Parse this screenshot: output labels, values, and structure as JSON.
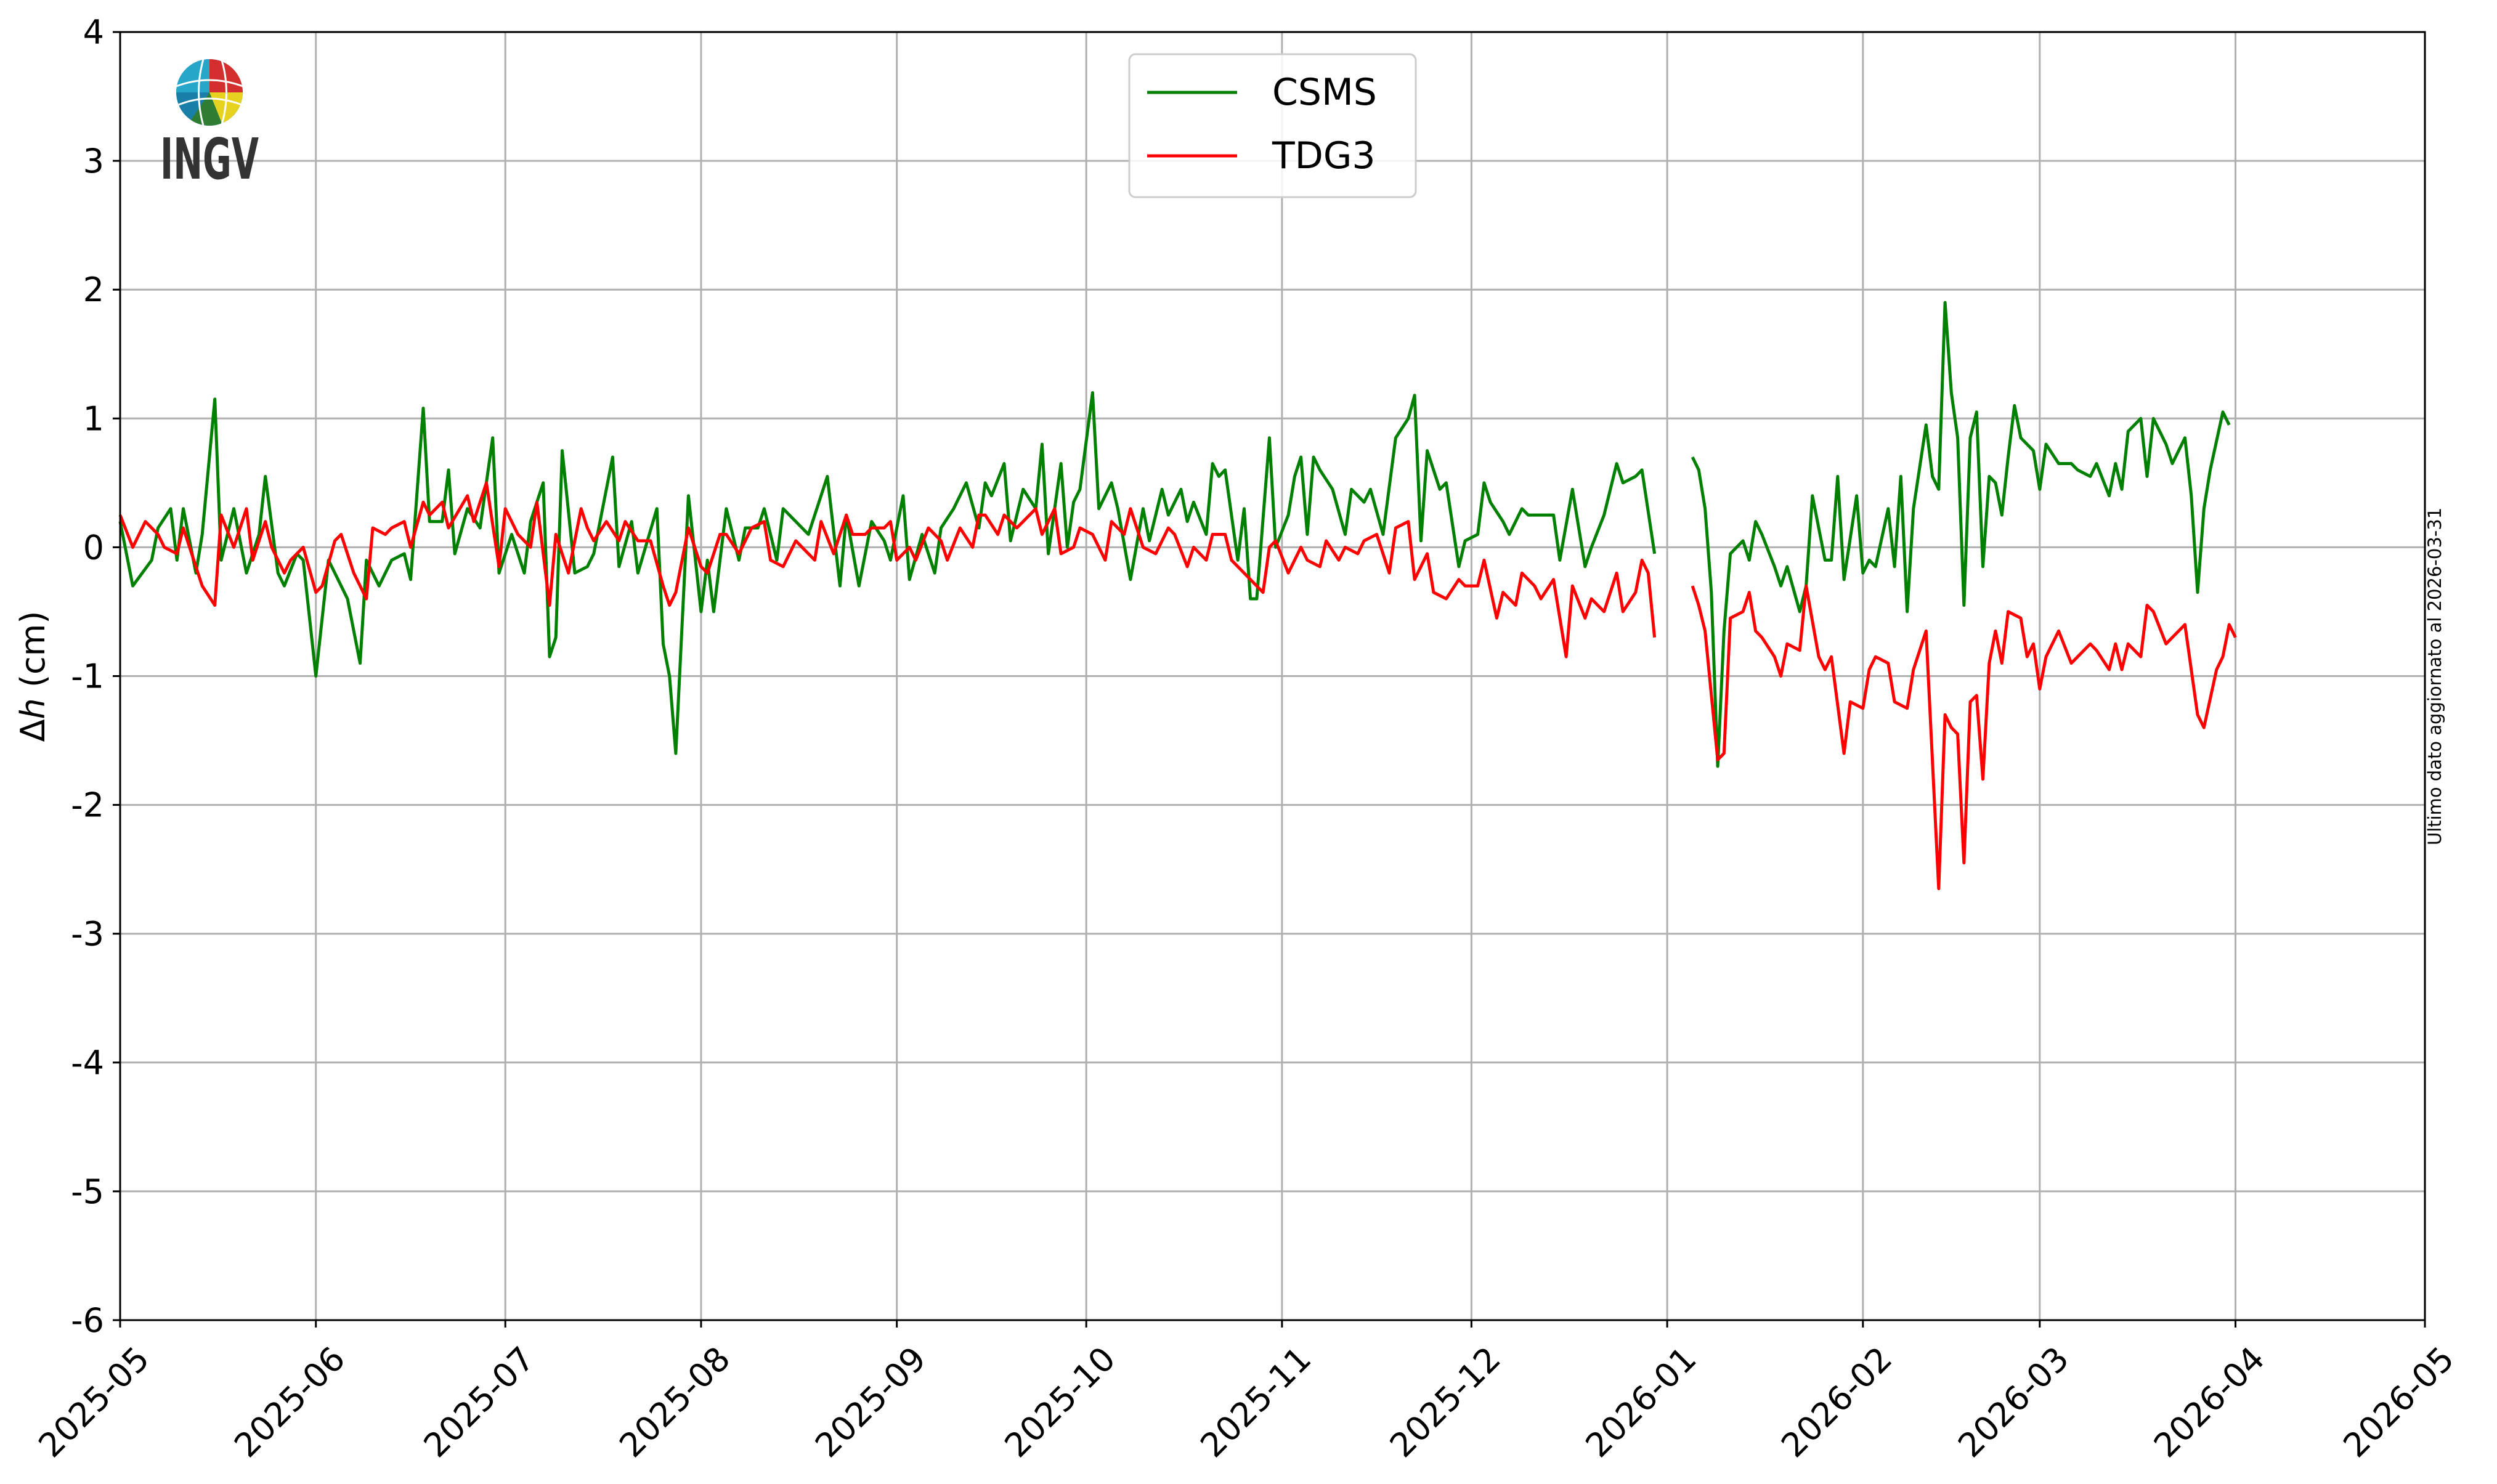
{
  "chart_data": {
    "type": "line",
    "title": "",
    "xlabel": "",
    "ylabel_symbol": "Δ",
    "ylabel_var": "h",
    "ylabel_unit": " (cm)",
    "x_unit": "days since 2025-05-01",
    "xlim": [
      0,
      365
    ],
    "ylim": [
      -6,
      4
    ],
    "grid": true,
    "legend_position": "top-center",
    "xticks": [
      {
        "day": 0,
        "label": "2025-05"
      },
      {
        "day": 31,
        "label": "2025-06"
      },
      {
        "day": 61,
        "label": "2025-07"
      },
      {
        "day": 92,
        "label": "2025-08"
      },
      {
        "day": 123,
        "label": "2025-09"
      },
      {
        "day": 153,
        "label": "2025-10"
      },
      {
        "day": 184,
        "label": "2025-11"
      },
      {
        "day": 214,
        "label": "2025-12"
      },
      {
        "day": 245,
        "label": "2026-01"
      },
      {
        "day": 276,
        "label": "2026-02"
      },
      {
        "day": 304,
        "label": "2026-03"
      },
      {
        "day": 335,
        "label": "2026-04"
      },
      {
        "day": 365,
        "label": "2026-05"
      }
    ],
    "yticks": [
      {
        "value": 4,
        "label": "4"
      },
      {
        "value": 3,
        "label": "3"
      },
      {
        "value": 2,
        "label": "2"
      },
      {
        "value": 1,
        "label": "1"
      },
      {
        "value": 0,
        "label": "0"
      },
      {
        "value": -1,
        "label": "-1"
      },
      {
        "value": -2,
        "label": "-2"
      },
      {
        "value": -3,
        "label": "-3"
      },
      {
        "value": -4,
        "label": "-4"
      },
      {
        "value": -5,
        "label": "-5"
      },
      {
        "value": -6,
        "label": "-6"
      }
    ],
    "series": [
      {
        "name": "CSMS",
        "color": "#008000",
        "x": [
          0,
          2,
          5,
          6,
          8,
          9,
          10,
          12,
          13,
          15,
          16,
          18,
          20,
          22,
          23,
          25,
          26,
          28,
          29,
          31,
          33,
          34,
          36,
          38,
          39,
          41,
          43,
          45,
          46,
          48,
          49,
          51,
          52,
          53,
          55,
          57,
          59,
          60,
          62,
          64,
          65,
          67,
          68,
          69,
          70,
          72,
          74,
          75,
          78,
          79,
          81,
          82,
          85,
          86,
          87,
          88,
          90,
          92,
          93,
          94,
          96,
          98,
          99,
          101,
          102,
          104,
          105,
          107,
          109,
          112,
          114,
          115,
          117,
          119,
          121,
          122,
          124,
          125,
          127,
          129,
          130,
          132,
          134,
          136,
          137,
          138,
          140,
          141,
          143,
          145,
          146,
          147,
          149,
          150,
          151,
          152,
          154,
          155,
          157,
          158,
          160,
          162,
          163,
          165,
          166,
          168,
          169,
          170,
          172,
          173,
          174,
          175,
          177,
          178,
          179,
          180,
          182,
          183,
          185,
          186,
          187,
          188,
          189,
          190,
          192,
          194,
          195,
          197,
          198,
          200,
          202,
          204,
          205,
          206,
          207,
          209,
          210,
          212,
          213,
          215,
          216,
          217,
          219,
          220,
          222,
          223,
          225,
          227,
          228,
          230,
          232,
          233,
          235,
          237,
          238,
          240,
          241,
          243,
          246,
          249,
          250,
          251,
          252,
          253,
          254,
          255,
          257,
          258,
          259,
          260,
          262,
          263,
          264,
          266,
          267,
          268,
          270,
          271,
          272,
          273,
          275,
          276,
          277,
          278,
          280,
          281,
          282,
          283,
          284,
          286,
          287,
          288,
          289,
          290,
          291,
          292,
          293,
          294,
          295,
          296,
          297,
          298,
          299,
          300,
          301,
          303,
          304,
          305,
          307,
          309,
          310,
          312,
          313,
          315,
          316,
          317,
          318,
          320,
          321,
          322,
          324,
          325,
          327,
          328,
          329,
          330,
          331,
          333,
          334
        ],
        "y": [
          0.2,
          -0.3,
          -0.1,
          0.15,
          0.3,
          -0.1,
          0.3,
          -0.2,
          0.1,
          1.15,
          -0.1,
          0.3,
          -0.2,
          0.1,
          0.55,
          -0.2,
          -0.3,
          -0.05,
          -0.1,
          -1.0,
          -0.1,
          -0.2,
          -0.4,
          -0.9,
          -0.1,
          -0.3,
          -0.1,
          -0.05,
          -0.25,
          1.08,
          0.2,
          0.2,
          0.6,
          -0.05,
          0.3,
          0.15,
          0.85,
          -0.2,
          0.1,
          -0.2,
          0.2,
          0.5,
          -0.85,
          -0.7,
          0.75,
          -0.2,
          -0.15,
          -0.05,
          0.7,
          -0.15,
          0.2,
          -0.2,
          0.3,
          -0.75,
          -1.0,
          -1.6,
          0.4,
          -0.5,
          -0.1,
          -0.5,
          0.3,
          -0.1,
          0.15,
          0.15,
          0.3,
          -0.1,
          0.3,
          0.2,
          0.1,
          0.55,
          -0.3,
          0.25,
          -0.3,
          0.2,
          0.05,
          -0.1,
          0.4,
          -0.25,
          0.1,
          -0.2,
          0.15,
          0.3,
          0.5,
          0.15,
          0.5,
          0.4,
          0.65,
          0.05,
          0.45,
          0.3,
          0.8,
          -0.05,
          0.65,
          0.0,
          0.35,
          0.45,
          1.2,
          0.3,
          0.5,
          0.3,
          -0.25,
          0.3,
          0.05,
          0.45,
          0.25,
          0.45,
          0.2,
          0.35,
          0.1,
          0.65,
          0.55,
          0.6,
          -0.1,
          0.3,
          -0.4,
          -0.4,
          0.85,
          0.0,
          0.25,
          0.55,
          0.7,
          0.1,
          0.7,
          0.6,
          0.45,
          0.1,
          0.45,
          0.35,
          0.45,
          0.1,
          0.85,
          1.0,
          1.18,
          0.05,
          0.75,
          0.45,
          0.5,
          -0.15,
          0.05,
          0.1,
          0.5,
          0.35,
          0.2,
          0.1,
          0.3,
          0.25,
          0.25,
          0.25,
          -0.1,
          0.45,
          -0.15,
          0.0,
          0.25,
          0.65,
          0.5,
          0.55,
          0.6,
          -0.05,
          null,
          0.7,
          0.6,
          0.3,
          -0.35,
          -1.7,
          -0.65,
          -0.05,
          0.05,
          -0.1,
          0.2,
          0.1,
          -0.15,
          -0.3,
          -0.15,
          -0.5,
          -0.3,
          0.4,
          -0.1,
          -0.1,
          0.55,
          -0.25,
          0.4,
          -0.2,
          -0.1,
          -0.15,
          0.3,
          -0.15,
          0.55,
          -0.5,
          0.3,
          0.95,
          0.55,
          0.45,
          1.9,
          1.2,
          0.85,
          -0.45,
          0.85,
          1.05,
          -0.15,
          0.55,
          0.5,
          0.25,
          0.7,
          1.1,
          0.85,
          0.75,
          0.45,
          0.8,
          0.65,
          0.65,
          0.6,
          0.55,
          0.65,
          0.4,
          0.65,
          0.45,
          0.9,
          1.0,
          0.55,
          1.0,
          0.8,
          0.65,
          0.85,
          0.4,
          -0.35,
          0.3,
          0.6,
          1.05,
          0.95
        ]
      },
      {
        "name": "TDG3",
        "color": "#ff0000",
        "x": [
          0,
          2,
          4,
          6,
          7,
          9,
          10,
          11,
          13,
          15,
          16,
          18,
          20,
          21,
          23,
          24,
          26,
          27,
          29,
          31,
          32,
          34,
          35,
          37,
          39,
          40,
          42,
          43,
          45,
          46,
          48,
          49,
          51,
          52,
          55,
          56,
          58,
          60,
          61,
          63,
          65,
          66,
          68,
          69,
          71,
          73,
          74,
          75,
          77,
          79,
          80,
          82,
          84,
          86,
          87,
          88,
          90,
          92,
          93,
          95,
          96,
          98,
          100,
          102,
          103,
          105,
          107,
          108,
          110,
          111,
          113,
          115,
          116,
          118,
          119,
          121,
          122,
          123,
          125,
          126,
          128,
          130,
          131,
          133,
          135,
          136,
          137,
          139,
          140,
          142,
          143,
          145,
          146,
          148,
          149,
          151,
          152,
          154,
          156,
          157,
          159,
          160,
          162,
          164,
          166,
          167,
          169,
          170,
          172,
          173,
          175,
          176,
          178,
          179,
          181,
          182,
          183,
          185,
          187,
          188,
          190,
          191,
          193,
          194,
          196,
          197,
          199,
          201,
          202,
          204,
          205,
          207,
          208,
          210,
          212,
          213,
          215,
          216,
          218,
          219,
          221,
          222,
          224,
          225,
          227,
          229,
          230,
          232,
          233,
          235,
          237,
          238,
          240,
          241,
          242,
          243,
          246,
          249,
          250,
          251,
          253,
          254,
          255,
          257,
          258,
          259,
          260,
          262,
          263,
          264,
          266,
          267,
          269,
          270,
          271,
          273,
          274,
          276,
          277,
          278,
          280,
          281,
          283,
          284,
          286,
          288,
          289,
          290,
          291,
          292,
          293,
          294,
          295,
          296,
          297,
          298,
          299,
          301,
          302,
          303,
          304,
          305,
          307,
          309,
          310,
          312,
          313,
          315,
          316,
          317,
          318,
          320,
          321,
          322,
          324,
          325,
          327,
          329,
          330,
          332,
          333,
          334,
          335
        ],
        "y": [
          0.25,
          0.0,
          0.2,
          0.1,
          0.0,
          -0.05,
          0.15,
          0.0,
          -0.3,
          -0.45,
          0.25,
          0.0,
          0.3,
          -0.1,
          0.2,
          0.0,
          -0.2,
          -0.1,
          0.0,
          -0.35,
          -0.3,
          0.05,
          0.1,
          -0.2,
          -0.4,
          0.15,
          0.1,
          0.15,
          0.2,
          0.0,
          0.35,
          0.25,
          0.35,
          0.15,
          0.4,
          0.2,
          0.5,
          -0.15,
          0.3,
          0.1,
          0.0,
          0.35,
          -0.45,
          0.1,
          -0.2,
          0.3,
          0.15,
          0.05,
          0.2,
          0.05,
          0.2,
          0.05,
          0.05,
          -0.3,
          -0.45,
          -0.35,
          0.15,
          -0.15,
          -0.2,
          0.1,
          0.1,
          -0.05,
          0.15,
          0.2,
          -0.1,
          -0.15,
          0.05,
          0.0,
          -0.1,
          0.2,
          -0.05,
          0.25,
          0.1,
          0.1,
          0.15,
          0.15,
          0.2,
          -0.1,
          0.0,
          -0.1,
          0.15,
          0.05,
          -0.1,
          0.15,
          0.0,
          0.25,
          0.25,
          0.1,
          0.25,
          0.15,
          0.2,
          0.3,
          0.1,
          0.3,
          -0.05,
          0.0,
          0.15,
          0.1,
          -0.1,
          0.2,
          0.1,
          0.3,
          0.0,
          -0.05,
          0.15,
          0.1,
          -0.15,
          0.0,
          -0.1,
          0.1,
          0.1,
          -0.1,
          -0.2,
          -0.25,
          -0.35,
          0.0,
          0.05,
          -0.2,
          0.0,
          -0.1,
          -0.15,
          0.05,
          -0.1,
          0.0,
          -0.05,
          0.05,
          0.1,
          -0.2,
          0.15,
          0.2,
          -0.25,
          -0.05,
          -0.35,
          -0.4,
          -0.25,
          -0.3,
          -0.3,
          -0.1,
          -0.55,
          -0.35,
          -0.45,
          -0.2,
          -0.3,
          -0.4,
          -0.25,
          -0.85,
          -0.3,
          -0.55,
          -0.4,
          -0.5,
          -0.2,
          -0.5,
          -0.35,
          -0.1,
          -0.2,
          -0.7,
          null,
          -0.3,
          -0.45,
          -0.65,
          -1.65,
          -1.6,
          -0.55,
          -0.5,
          -0.35,
          -0.65,
          -0.7,
          -0.85,
          -1.0,
          -0.75,
          -0.8,
          -0.3,
          -0.85,
          -0.95,
          -0.85,
          -1.6,
          -1.2,
          -1.25,
          -0.95,
          -0.85,
          -0.9,
          -1.2,
          -1.25,
          -0.95,
          -0.65,
          -2.65,
          -1.3,
          -1.4,
          -1.45,
          -2.45,
          -1.2,
          -1.15,
          -1.8,
          -0.9,
          -0.65,
          -0.9,
          -0.5,
          -0.55,
          -0.85,
          -0.75,
          -1.1,
          -0.85,
          -0.65,
          -0.9,
          -0.85,
          -0.75,
          -0.8,
          -0.95,
          -0.75,
          -0.95,
          -0.75,
          -0.85,
          -0.45,
          -0.5,
          -0.75,
          -0.7,
          -0.6,
          -1.3,
          -1.4,
          -0.95,
          -0.85,
          -0.6,
          -0.7
        ]
      }
    ],
    "annotations": {
      "side_note": "Ultimo dato aggiornato al 2026-03-31"
    }
  },
  "logo": {
    "text": "INGV"
  }
}
